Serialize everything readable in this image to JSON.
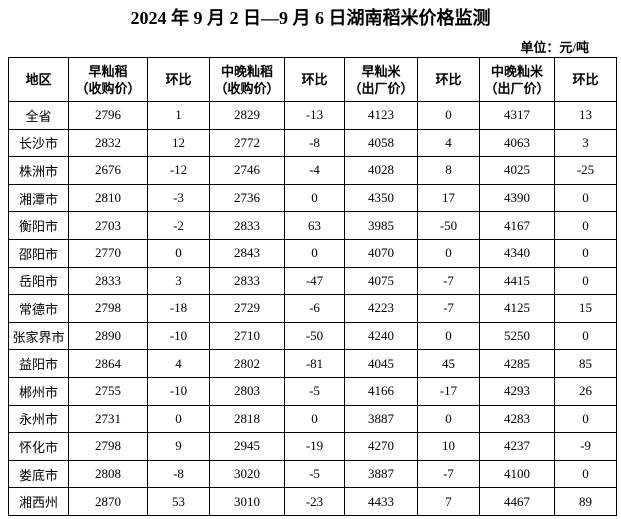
{
  "title": "2024 年 9 月 2 日—9 月 6 日湖南稻米价格监测",
  "unit": "单位：元/吨",
  "table": {
    "header": [
      [
        "地区"
      ],
      [
        "早籼稻",
        "（收购价）"
      ],
      [
        "环比"
      ],
      [
        "中晚籼稻",
        "（收购价）"
      ],
      [
        "环比"
      ],
      [
        "早籼米",
        "（出厂价）"
      ],
      [
        "环比"
      ],
      [
        "中晚籼米",
        "（出厂价）"
      ],
      [
        "环比"
      ]
    ],
    "rows": [
      [
        "全省",
        2796,
        1,
        2829,
        -13,
        4123,
        0,
        4317,
        13
      ],
      [
        "长沙市",
        2832,
        12,
        2772,
        -8,
        4058,
        4,
        4063,
        3
      ],
      [
        "株洲市",
        2676,
        -12,
        2746,
        -4,
        4028,
        8,
        4025,
        -25
      ],
      [
        "湘潭市",
        2810,
        -3,
        2736,
        0,
        4350,
        17,
        4390,
        0
      ],
      [
        "衡阳市",
        2703,
        -2,
        2833,
        63,
        3985,
        -50,
        4167,
        0
      ],
      [
        "邵阳市",
        2770,
        0,
        2843,
        0,
        4070,
        0,
        4340,
        0
      ],
      [
        "岳阳市",
        2833,
        3,
        2833,
        -47,
        4075,
        -7,
        4415,
        0
      ],
      [
        "常德市",
        2798,
        -18,
        2729,
        -6,
        4223,
        -7,
        4125,
        15
      ],
      [
        "张家界市",
        2890,
        -10,
        2710,
        -50,
        4240,
        0,
        5250,
        0
      ],
      [
        "益阳市",
        2864,
        4,
        2802,
        -81,
        4045,
        45,
        4285,
        85
      ],
      [
        "郴州市",
        2755,
        -10,
        2803,
        -5,
        4166,
        -17,
        4293,
        26
      ],
      [
        "永州市",
        2731,
        0,
        2818,
        0,
        3887,
        0,
        4283,
        0
      ],
      [
        "怀化市",
        2798,
        9,
        2945,
        -19,
        4270,
        10,
        4237,
        -9
      ],
      [
        "娄底市",
        2808,
        -8,
        3020,
        -5,
        3887,
        -7,
        4100,
        0
      ],
      [
        "湘西州",
        2870,
        53,
        3010,
        -23,
        4433,
        7,
        4467,
        89
      ]
    ]
  }
}
